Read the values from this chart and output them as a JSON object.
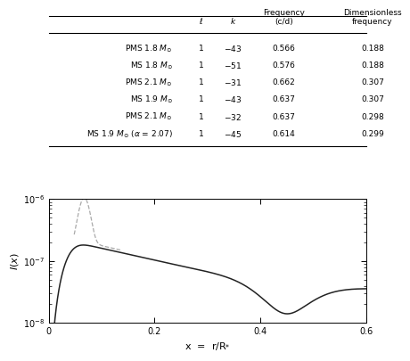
{
  "table_rows": [
    [
      "PMS 1.8 $M_{\\odot}$",
      "1",
      "$-$43",
      "0.566",
      "0.188"
    ],
    [
      "MS 1.8 $M_{\\odot}$",
      "1",
      "$-$51",
      "0.576",
      "0.188"
    ],
    [
      "PMS 2.1 $M_{\\odot}$",
      "1",
      "$-$31",
      "0.662",
      "0.307"
    ],
    [
      "MS 1.9 $M_{\\odot}$",
      "1",
      "$-$43",
      "0.637",
      "0.307"
    ],
    [
      "PMS 2.1 $M_{\\odot}$",
      "1",
      "$-$32",
      "0.637",
      "0.298"
    ],
    [
      "MS 1.9 $M_{\\odot}$ ($\\alpha$ = 2.07)",
      "1",
      "$-$45",
      "0.614",
      "0.299"
    ]
  ],
  "col_labels": [
    "$\\ell$",
    "$k$",
    "Frequency\n(c/d)",
    "Dimensionless\nfrequency"
  ],
  "xlabel": "x  =  r/R$_{*}$",
  "xlim": [
    0.0,
    0.6
  ],
  "ylim_log_min": -8,
  "ylim_log_max": -6,
  "line_color_solid": "#222222",
  "line_color_dashed": "#aaaaaa",
  "background_color": "#ffffff"
}
